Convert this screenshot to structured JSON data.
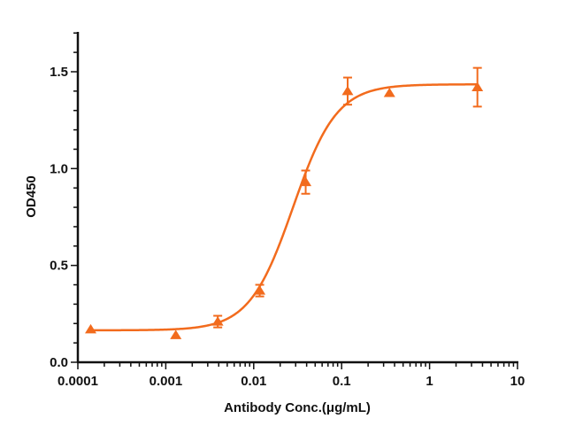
{
  "chart_data": {
    "type": "scatter",
    "title": "",
    "xlabel": "Antibody Conc.(μg/mL)",
    "ylabel": "OD450",
    "xscale": "log",
    "xlim": [
      0.0001,
      10
    ],
    "ylim": [
      0,
      1.7
    ],
    "x_ticks": [
      0.0001,
      0.001,
      0.01,
      0.1,
      1,
      10
    ],
    "x_tick_labels": [
      "0.0001",
      "0.001",
      "0.01",
      "0.1",
      "1",
      "10"
    ],
    "y_ticks": [
      0,
      0.5,
      1.0,
      1.5
    ],
    "y_tick_labels": [
      "0.0",
      "0.5",
      "1.0",
      "1.5"
    ],
    "grid": false,
    "legend": null,
    "series": [
      {
        "name": "OD450",
        "color": "#F26B1D",
        "marker": "triangle",
        "x": [
          0.00014,
          0.0013,
          0.0039,
          0.0117,
          0.039,
          0.117,
          0.35,
          3.5
        ],
        "y": [
          0.17,
          0.14,
          0.21,
          0.37,
          0.93,
          1.4,
          1.39,
          1.42
        ],
        "error": [
          0.0,
          0.0,
          0.03,
          0.03,
          0.06,
          0.07,
          0.0,
          0.1
        ]
      }
    ],
    "fit": {
      "type": "4PL",
      "bottom": 0.165,
      "top": 1.435,
      "ec50": 0.028,
      "hill": 1.75
    }
  }
}
